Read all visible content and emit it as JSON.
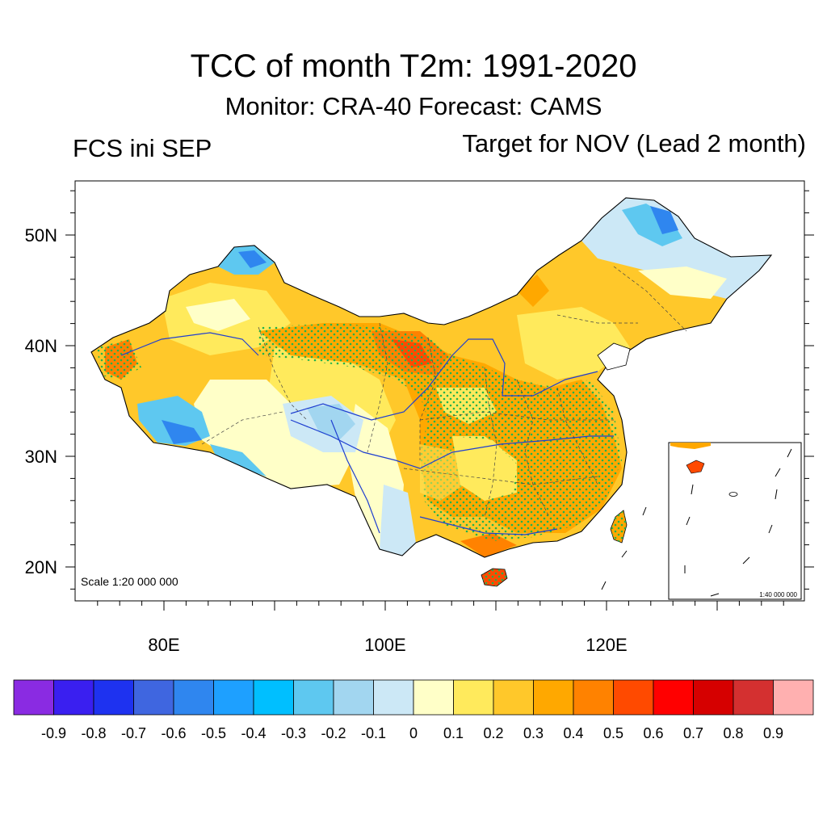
{
  "header": {
    "title": "TCC of month T2m: 1991-2020",
    "subtitle": "Monitor: CRA-40   Forecast: CAMS",
    "left_label": "FCS ini SEP",
    "right_label": "Target for NOV (Lead 2 month)"
  },
  "map": {
    "lat_ticks": [
      {
        "value": 50,
        "label": "50N"
      },
      {
        "value": 40,
        "label": "40N"
      },
      {
        "value": 30,
        "label": "30N"
      },
      {
        "value": 20,
        "label": "20N"
      }
    ],
    "lon_ticks": [
      {
        "value": 80,
        "label": "80E"
      },
      {
        "value": 100,
        "label": "100E"
      },
      {
        "value": 120,
        "label": "120E"
      }
    ],
    "lon_range": [
      72,
      138
    ],
    "lat_range": [
      17,
      55
    ],
    "scale_label": "Scale 1:20 000 000",
    "inset_scale_label": "1:40 000 000",
    "stipple_color": "#22b14c",
    "river_color": "#1f3fd0",
    "border_color": "#000000"
  },
  "colorbar": {
    "colors": [
      "#8a2be2",
      "#3a1ff0",
      "#1e32f0",
      "#3f66e0",
      "#2f86ef",
      "#1ea0ff",
      "#00bfff",
      "#5ec8f0",
      "#a2d6f0",
      "#cce8f6",
      "#ffffc8",
      "#ffea5c",
      "#ffc82a",
      "#ffa800",
      "#ff8200",
      "#ff4a00",
      "#ff0000",
      "#d60000",
      "#d43030",
      "#ffb0b0"
    ],
    "labels": [
      "-0.9",
      "-0.8",
      "-0.7",
      "-0.6",
      "-0.5",
      "-0.4",
      "-0.3",
      "-0.2",
      "-0.1",
      "0",
      "0.1",
      "0.2",
      "0.3",
      "0.4",
      "0.5",
      "0.6",
      "0.7",
      "0.8",
      "0.9"
    ]
  }
}
